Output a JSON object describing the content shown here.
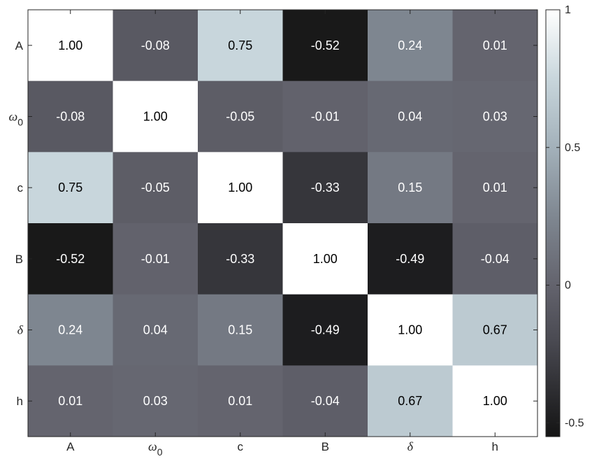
{
  "chart_data": {
    "type": "heatmap",
    "x_labels": [
      {
        "base": "A",
        "sub": "",
        "italic": false
      },
      {
        "base": "ω",
        "sub": "0",
        "italic": true
      },
      {
        "base": "c",
        "sub": "",
        "italic": false
      },
      {
        "base": "B",
        "sub": "",
        "italic": false
      },
      {
        "base": "δ",
        "sub": "",
        "italic": true
      },
      {
        "base": "h",
        "sub": "",
        "italic": false
      }
    ],
    "y_labels": [
      {
        "base": "A",
        "sub": "",
        "italic": false
      },
      {
        "base": "ω",
        "sub": "0",
        "italic": true
      },
      {
        "base": "c",
        "sub": "",
        "italic": false
      },
      {
        "base": "B",
        "sub": "",
        "italic": false
      },
      {
        "base": "δ",
        "sub": "",
        "italic": true
      },
      {
        "base": "h",
        "sub": "",
        "italic": false
      }
    ],
    "values": [
      [
        1.0,
        -0.08,
        0.75,
        -0.52,
        0.24,
        0.01
      ],
      [
        -0.08,
        1.0,
        -0.05,
        -0.01,
        0.04,
        0.03
      ],
      [
        0.75,
        -0.05,
        1.0,
        -0.33,
        0.15,
        0.01
      ],
      [
        -0.52,
        -0.01,
        -0.33,
        1.0,
        -0.49,
        -0.04
      ],
      [
        0.24,
        0.04,
        0.15,
        -0.49,
        1.0,
        0.67
      ],
      [
        0.01,
        0.03,
        0.01,
        -0.04,
        0.67,
        1.0
      ]
    ],
    "value_format": "2-decimals",
    "colorbar": {
      "min": -0.55,
      "max": 1.0,
      "ticks": [
        -0.5,
        0,
        0.5,
        1
      ],
      "tick_labels": [
        "-0.5",
        "0",
        "0.5",
        "1"
      ]
    },
    "colormap_stops": [
      {
        "v": -0.55,
        "color": "#141414"
      },
      {
        "v": -0.2,
        "color": "#4a4a52"
      },
      {
        "v": 0.0,
        "color": "#63636d"
      },
      {
        "v": 0.25,
        "color": "#7f8791"
      },
      {
        "v": 0.5,
        "color": "#a3b1ba"
      },
      {
        "v": 0.75,
        "color": "#c8d6dc"
      },
      {
        "v": 1.0,
        "color": "#ffffff"
      }
    ],
    "text_dark_color": "#000000",
    "text_light_color": "#ffffff",
    "grid": false,
    "title": "",
    "xlabel": "",
    "ylabel": ""
  }
}
